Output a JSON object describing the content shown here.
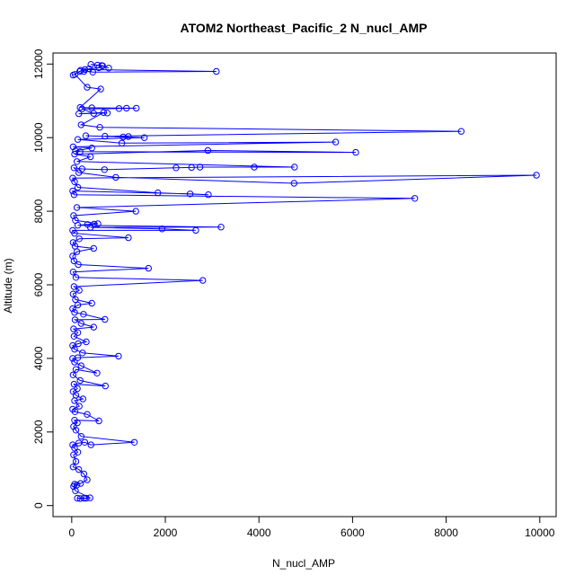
{
  "chart_data": {
    "type": "scatter",
    "title": "ATOM2 Northeast_Pacific_2 N_nucl_AMP",
    "xlabel": "N_nucl_AMP",
    "ylabel": "Altitude (m)",
    "xlim": [
      -400,
      10350
    ],
    "ylim": [
      -300,
      12300
    ],
    "xticks": [
      0,
      2000,
      4000,
      6000,
      8000,
      10000
    ],
    "yticks": [
      0,
      2000,
      4000,
      6000,
      8000,
      10000,
      12000
    ],
    "grid": false,
    "line_color": "#0000ff",
    "marker": "open-circle",
    "series": [
      {
        "values": [
          [
            310,
            200
          ],
          [
            180,
            190
          ],
          [
            120,
            200
          ],
          [
            260,
            200
          ],
          [
            390,
            210
          ],
          [
            80,
            400
          ],
          [
            40,
            520
          ],
          [
            110,
            560
          ],
          [
            60,
            580
          ],
          [
            190,
            600
          ],
          [
            330,
            700
          ],
          [
            260,
            860
          ],
          [
            150,
            980
          ],
          [
            30,
            1050
          ],
          [
            90,
            1200
          ],
          [
            40,
            1380
          ],
          [
            130,
            1450
          ],
          [
            60,
            1560
          ],
          [
            20,
            1650
          ],
          [
            150,
            1700
          ],
          [
            280,
            1720
          ],
          [
            410,
            1650
          ],
          [
            1340,
            1720
          ],
          [
            200,
            1880
          ],
          [
            90,
            2050
          ],
          [
            40,
            2150
          ],
          [
            120,
            2250
          ],
          [
            60,
            2320
          ],
          [
            580,
            2300
          ],
          [
            330,
            2480
          ],
          [
            70,
            2550
          ],
          [
            20,
            2620
          ],
          [
            160,
            2700
          ],
          [
            60,
            2850
          ],
          [
            240,
            2900
          ],
          [
            90,
            3000
          ],
          [
            30,
            3100
          ],
          [
            120,
            3180
          ],
          [
            50,
            3300
          ],
          [
            720,
            3250
          ],
          [
            180,
            3400
          ],
          [
            30,
            3550
          ],
          [
            90,
            3700
          ],
          [
            540,
            3600
          ],
          [
            200,
            3800
          ],
          [
            60,
            3900
          ],
          [
            20,
            4000
          ],
          [
            130,
            4020
          ],
          [
            1000,
            4060
          ],
          [
            230,
            4150
          ],
          [
            60,
            4250
          ],
          [
            20,
            4350
          ],
          [
            140,
            4400
          ],
          [
            310,
            4450
          ],
          [
            50,
            4600
          ],
          [
            130,
            4700
          ],
          [
            40,
            4800
          ],
          [
            470,
            4850
          ],
          [
            200,
            4950
          ],
          [
            70,
            5050
          ],
          [
            710,
            5060
          ],
          [
            250,
            5200
          ],
          [
            60,
            5250
          ],
          [
            20,
            5350
          ],
          [
            130,
            5450
          ],
          [
            430,
            5500
          ],
          [
            80,
            5600
          ],
          [
            30,
            5750
          ],
          [
            160,
            5850
          ],
          [
            50,
            5950
          ],
          [
            2800,
            6120
          ],
          [
            90,
            6200
          ],
          [
            30,
            6350
          ],
          [
            1640,
            6450
          ],
          [
            140,
            6550
          ],
          [
            50,
            6650
          ],
          [
            20,
            6780
          ],
          [
            110,
            6900
          ],
          [
            470,
            6990
          ],
          [
            70,
            7050
          ],
          [
            30,
            7150
          ],
          [
            160,
            7250
          ],
          [
            1210,
            7280
          ],
          [
            60,
            7400
          ],
          [
            20,
            7480
          ],
          [
            2650,
            7480
          ],
          [
            1930,
            7520
          ],
          [
            400,
            7560
          ],
          [
            3190,
            7570
          ],
          [
            130,
            7620
          ],
          [
            340,
            7640
          ],
          [
            480,
            7650
          ],
          [
            560,
            7660
          ],
          [
            80,
            7750
          ],
          [
            40,
            7880
          ],
          [
            1370,
            8000
          ],
          [
            110,
            8100
          ],
          [
            7330,
            8350
          ],
          [
            50,
            8450
          ],
          [
            20,
            8550
          ],
          [
            2530,
            8470
          ],
          [
            2920,
            8450
          ],
          [
            1840,
            8500
          ],
          [
            130,
            8650
          ],
          [
            60,
            8800
          ],
          [
            20,
            8900
          ],
          [
            9930,
            8980
          ],
          [
            4750,
            8760
          ],
          [
            940,
            8920
          ],
          [
            150,
            9050
          ],
          [
            50,
            9180
          ],
          [
            220,
            9150
          ],
          [
            700,
            9130
          ],
          [
            2230,
            9180
          ],
          [
            2560,
            9190
          ],
          [
            2740,
            9200
          ],
          [
            3900,
            9200
          ],
          [
            4760,
            9200
          ],
          [
            110,
            9350
          ],
          [
            400,
            9480
          ],
          [
            60,
            9550
          ],
          [
            2910,
            9650
          ],
          [
            6070,
            9600
          ],
          [
            180,
            9620
          ],
          [
            80,
            9640
          ],
          [
            430,
            9720
          ],
          [
            30,
            9750
          ],
          [
            5640,
            9880
          ],
          [
            1070,
            9850
          ],
          [
            130,
            9950
          ],
          [
            1550,
            10000
          ],
          [
            300,
            10050
          ],
          [
            1100,
            10020
          ],
          [
            1210,
            10030
          ],
          [
            710,
            10040
          ],
          [
            8320,
            10170
          ],
          [
            600,
            10280
          ],
          [
            200,
            10350
          ],
          [
            680,
            10680
          ],
          [
            150,
            10650
          ],
          [
            760,
            10670
          ],
          [
            470,
            10660
          ],
          [
            220,
            10780
          ],
          [
            1010,
            10790
          ],
          [
            1380,
            10800
          ],
          [
            1170,
            10800
          ],
          [
            430,
            10810
          ],
          [
            180,
            10820
          ],
          [
            620,
            11320
          ],
          [
            330,
            11370
          ],
          [
            70,
            11720
          ],
          [
            30,
            11700
          ],
          [
            170,
            11800
          ],
          [
            280,
            11850
          ],
          [
            3090,
            11800
          ],
          [
            450,
            11780
          ],
          [
            190,
            11830
          ],
          [
            260,
            11800
          ],
          [
            370,
            11870
          ],
          [
            580,
            11900
          ],
          [
            660,
            11950
          ],
          [
            410,
            11990
          ],
          [
            550,
            11970
          ],
          [
            640,
            11960
          ],
          [
            790,
            11890
          ]
        ]
      }
    ]
  }
}
